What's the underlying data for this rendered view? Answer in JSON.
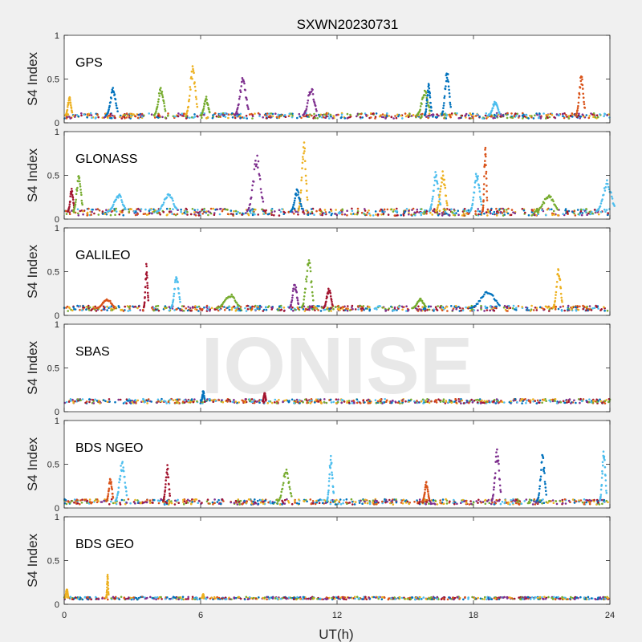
{
  "figure": {
    "title": "SXWN20230731",
    "xlabel": "UT(h)",
    "watermark": "IONISE"
  },
  "chart_data": {
    "type": "scatter",
    "title": "SXWN20230731",
    "xlabel": "UT(h)",
    "ylabel": "S4 Index",
    "xlim": [
      0,
      24
    ],
    "xticks": [
      0,
      6,
      12,
      18,
      24
    ],
    "ylim": [
      0,
      1
    ],
    "yticks": [
      0,
      0.5,
      1
    ],
    "ytick_labels": [
      "0",
      "0.5",
      "1"
    ],
    "grid": false,
    "colors": [
      "#0072BD",
      "#D95319",
      "#EDB120",
      "#7E2F8E",
      "#77AC30",
      "#4DBEEE",
      "#A2142F"
    ],
    "panels": [
      {
        "label": "GPS",
        "baseline": 0.08,
        "noise": 0.03,
        "spikes": [
          {
            "x": 0.2,
            "peak": 0.3,
            "width": 0.3,
            "color": 2
          },
          {
            "x": 2.1,
            "peak": 0.42,
            "width": 0.5,
            "color": 0
          },
          {
            "x": 4.2,
            "peak": 0.42,
            "width": 0.5,
            "color": 4
          },
          {
            "x": 5.6,
            "peak": 0.65,
            "width": 0.5,
            "color": 2
          },
          {
            "x": 6.2,
            "peak": 0.3,
            "width": 0.4,
            "color": 4
          },
          {
            "x": 7.8,
            "peak": 0.52,
            "width": 0.6,
            "color": 3
          },
          {
            "x": 10.8,
            "peak": 0.42,
            "width": 0.6,
            "color": 3
          },
          {
            "x": 15.8,
            "peak": 0.38,
            "width": 0.6,
            "color": 4
          },
          {
            "x": 16.0,
            "peak": 0.45,
            "width": 0.3,
            "color": 0
          },
          {
            "x": 16.8,
            "peak": 0.62,
            "width": 0.4,
            "color": 0
          },
          {
            "x": 18.9,
            "peak": 0.25,
            "width": 0.5,
            "color": 5
          },
          {
            "x": 22.7,
            "peak": 0.55,
            "width": 0.4,
            "color": 1
          }
        ]
      },
      {
        "label": "GLONASS",
        "baseline": 0.08,
        "noise": 0.04,
        "spikes": [
          {
            "x": 0.3,
            "peak": 0.35,
            "width": 0.3,
            "color": 6
          },
          {
            "x": 0.6,
            "peak": 0.55,
            "width": 0.4,
            "color": 4
          },
          {
            "x": 2.3,
            "peak": 0.3,
            "width": 0.8,
            "color": 5
          },
          {
            "x": 4.5,
            "peak": 0.3,
            "width": 0.9,
            "color": 5
          },
          {
            "x": 8.4,
            "peak": 0.75,
            "width": 0.7,
            "color": 3
          },
          {
            "x": 10.5,
            "peak": 0.92,
            "width": 0.4,
            "color": 2
          },
          {
            "x": 10.2,
            "peak": 0.35,
            "width": 0.5,
            "color": 0
          },
          {
            "x": 16.3,
            "peak": 0.55,
            "width": 0.5,
            "color": 5
          },
          {
            "x": 16.6,
            "peak": 0.55,
            "width": 0.5,
            "color": 2
          },
          {
            "x": 18.1,
            "peak": 0.55,
            "width": 0.5,
            "color": 5
          },
          {
            "x": 18.5,
            "peak": 0.85,
            "width": 0.2,
            "color": 1
          },
          {
            "x": 21.2,
            "peak": 0.28,
            "width": 1.0,
            "color": 4
          },
          {
            "x": 23.8,
            "peak": 0.45,
            "width": 0.8,
            "color": 5
          }
        ]
      },
      {
        "label": "GALILEO",
        "baseline": 0.08,
        "noise": 0.03,
        "spikes": [
          {
            "x": 1.8,
            "peak": 0.2,
            "width": 0.8,
            "color": 1
          },
          {
            "x": 3.6,
            "peak": 0.6,
            "width": 0.2,
            "color": 6
          },
          {
            "x": 4.9,
            "peak": 0.5,
            "width": 0.4,
            "color": 5
          },
          {
            "x": 7.2,
            "peak": 0.25,
            "width": 1.0,
            "color": 4
          },
          {
            "x": 10.1,
            "peak": 0.38,
            "width": 0.4,
            "color": 3
          },
          {
            "x": 10.7,
            "peak": 0.68,
            "width": 0.5,
            "color": 4
          },
          {
            "x": 11.6,
            "peak": 0.32,
            "width": 0.4,
            "color": 6
          },
          {
            "x": 15.6,
            "peak": 0.2,
            "width": 0.6,
            "color": 4
          },
          {
            "x": 18.5,
            "peak": 0.3,
            "width": 1.3,
            "color": 0
          },
          {
            "x": 21.7,
            "peak": 0.55,
            "width": 0.4,
            "color": 2
          }
        ]
      },
      {
        "label": "SBAS",
        "baseline": 0.12,
        "noise": 0.025,
        "spikes": [
          {
            "x": 6.1,
            "peak": 0.25,
            "width": 0.15,
            "color": 0
          },
          {
            "x": 8.8,
            "peak": 0.22,
            "width": 0.15,
            "color": 6
          }
        ]
      },
      {
        "label": "BDS NGEO",
        "baseline": 0.07,
        "noise": 0.03,
        "spikes": [
          {
            "x": 2.0,
            "peak": 0.35,
            "width": 0.3,
            "color": 1
          },
          {
            "x": 2.5,
            "peak": 0.55,
            "width": 0.5,
            "color": 5
          },
          {
            "x": 4.5,
            "peak": 0.5,
            "width": 0.3,
            "color": 6
          },
          {
            "x": 9.7,
            "peak": 0.45,
            "width": 0.6,
            "color": 4
          },
          {
            "x": 11.7,
            "peak": 0.6,
            "width": 0.3,
            "color": 5
          },
          {
            "x": 15.9,
            "peak": 0.3,
            "width": 0.3,
            "color": 1
          },
          {
            "x": 19.0,
            "peak": 0.7,
            "width": 0.4,
            "color": 3
          },
          {
            "x": 21.0,
            "peak": 0.62,
            "width": 0.4,
            "color": 0
          },
          {
            "x": 23.7,
            "peak": 0.68,
            "width": 0.3,
            "color": 5
          }
        ]
      },
      {
        "label": "BDS GEO",
        "baseline": 0.07,
        "noise": 0.015,
        "spikes": [
          {
            "x": 0.1,
            "peak": 0.18,
            "width": 0.15,
            "color": 2
          },
          {
            "x": 1.9,
            "peak": 0.35,
            "width": 0.1,
            "color": 2
          },
          {
            "x": 6.1,
            "peak": 0.12,
            "width": 0.1,
            "color": 2
          }
        ]
      }
    ]
  }
}
